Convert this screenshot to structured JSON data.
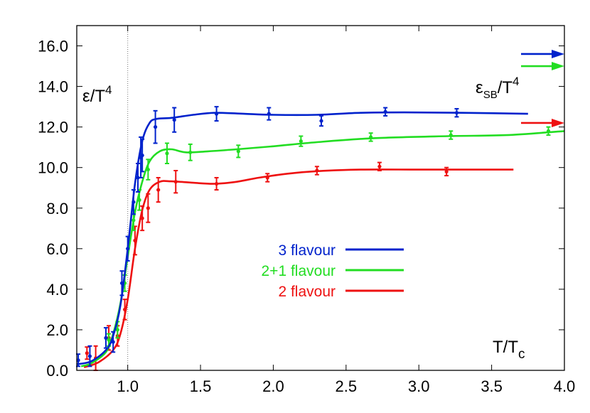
{
  "chart_data": {
    "type": "line",
    "title": "",
    "ylabel_main": "ε/T",
    "ylabel_sup": "4",
    "sb_label_main": "ε",
    "sb_label_sub": "SB",
    "sb_label_rest": "/T",
    "sb_label_sup": "4",
    "xlabel_main": "T/T",
    "xlabel_sub": "c",
    "xlim": [
      0.65,
      4.0
    ],
    "ylim": [
      0.0,
      17.0
    ],
    "x_ticks": [
      "1.0",
      "1.5",
      "2.0",
      "2.5",
      "3.0",
      "3.5",
      "4.0"
    ],
    "x_tick_values": [
      1.0,
      1.5,
      2.0,
      2.5,
      3.0,
      3.5,
      4.0
    ],
    "y_ticks": [
      "0.0",
      "2.0",
      "4.0",
      "6.0",
      "8.0",
      "10.0",
      "12.0",
      "14.0",
      "16.0"
    ],
    "y_tick_values": [
      0,
      2,
      4,
      6,
      8,
      10,
      12,
      14,
      16
    ],
    "tc_line_x": 1.0,
    "legend_position": "center",
    "series": [
      {
        "name": "3 flavour",
        "color": "#0022cc",
        "sb_limit": 15.6,
        "curve": [
          [
            0.65,
            0.3
          ],
          [
            0.75,
            0.45
          ],
          [
            0.85,
            1.0
          ],
          [
            0.9,
            1.7
          ],
          [
            0.95,
            3.2
          ],
          [
            1.0,
            6.0
          ],
          [
            1.05,
            9.2
          ],
          [
            1.1,
            11.3
          ],
          [
            1.15,
            12.2
          ],
          [
            1.2,
            12.4
          ],
          [
            1.3,
            12.45
          ],
          [
            1.45,
            12.6
          ],
          [
            1.6,
            12.7
          ],
          [
            1.8,
            12.65
          ],
          [
            2.0,
            12.6
          ],
          [
            2.3,
            12.6
          ],
          [
            2.6,
            12.7
          ],
          [
            2.9,
            12.72
          ],
          [
            3.3,
            12.7
          ],
          [
            3.75,
            12.65
          ]
        ],
        "points": [
          {
            "x": 0.66,
            "y": 0.5,
            "err": 0.3
          },
          {
            "x": 0.74,
            "y": 0.7,
            "err": 0.5
          },
          {
            "x": 0.85,
            "y": 1.6,
            "err": 0.5
          },
          {
            "x": 0.9,
            "y": 1.4,
            "err": 0.5
          },
          {
            "x": 0.96,
            "y": 4.3,
            "err": 0.6
          },
          {
            "x": 1.0,
            "y": 6.0,
            "err": 0.6
          },
          {
            "x": 1.04,
            "y": 8.3,
            "err": 0.6
          },
          {
            "x": 1.07,
            "y": 9.5,
            "err": 0.7
          },
          {
            "x": 1.09,
            "y": 10.5,
            "err": 1.0
          },
          {
            "x": 1.1,
            "y": 10.6,
            "err": 0.8
          },
          {
            "x": 1.19,
            "y": 12.0,
            "err": 0.8
          },
          {
            "x": 1.32,
            "y": 12.35,
            "err": 0.6
          },
          {
            "x": 1.61,
            "y": 12.65,
            "err": 0.35
          },
          {
            "x": 1.97,
            "y": 12.65,
            "err": 0.3
          },
          {
            "x": 2.33,
            "y": 12.3,
            "err": 0.25
          },
          {
            "x": 2.77,
            "y": 12.75,
            "err": 0.2
          },
          {
            "x": 3.26,
            "y": 12.7,
            "err": 0.2
          }
        ]
      },
      {
        "name": "2+1 flavour",
        "color": "#22dd22",
        "sb_limit": 15.0,
        "curve": [
          [
            0.68,
            0.2
          ],
          [
            0.75,
            0.35
          ],
          [
            0.85,
            0.9
          ],
          [
            0.9,
            1.8
          ],
          [
            0.95,
            3.3
          ],
          [
            1.0,
            5.6
          ],
          [
            1.05,
            7.8
          ],
          [
            1.1,
            9.3
          ],
          [
            1.15,
            10.3
          ],
          [
            1.22,
            10.8
          ],
          [
            1.3,
            10.9
          ],
          [
            1.4,
            10.75
          ],
          [
            1.55,
            10.8
          ],
          [
            1.75,
            10.9
          ],
          [
            2.0,
            11.05
          ],
          [
            2.3,
            11.25
          ],
          [
            2.7,
            11.45
          ],
          [
            3.2,
            11.55
          ],
          [
            3.6,
            11.6
          ],
          [
            4.0,
            11.8
          ]
        ],
        "points": [
          {
            "x": 0.87,
            "y": 1.5,
            "err": 0.3
          },
          {
            "x": 0.93,
            "y": 2.0,
            "err": 0.4
          },
          {
            "x": 0.98,
            "y": 4.3,
            "err": 0.4
          },
          {
            "x": 1.04,
            "y": 7.4,
            "err": 0.5
          },
          {
            "x": 1.08,
            "y": 8.4,
            "err": 0.5
          },
          {
            "x": 1.14,
            "y": 9.9,
            "err": 0.5
          },
          {
            "x": 1.27,
            "y": 10.7,
            "err": 0.5
          },
          {
            "x": 1.43,
            "y": 10.75,
            "err": 0.4
          },
          {
            "x": 1.76,
            "y": 10.8,
            "err": 0.3
          },
          {
            "x": 2.19,
            "y": 11.3,
            "err": 0.25
          },
          {
            "x": 2.67,
            "y": 11.5,
            "err": 0.2
          },
          {
            "x": 3.22,
            "y": 11.6,
            "err": 0.2
          },
          {
            "x": 3.89,
            "y": 11.8,
            "err": 0.2
          }
        ]
      },
      {
        "name": "2 flavour",
        "color": "#ee1111",
        "sb_limit": 12.2,
        "curve": [
          [
            0.7,
            0.15
          ],
          [
            0.8,
            0.4
          ],
          [
            0.9,
            1.0
          ],
          [
            0.95,
            1.8
          ],
          [
            1.0,
            3.5
          ],
          [
            1.05,
            6.0
          ],
          [
            1.1,
            7.9
          ],
          [
            1.15,
            8.9
          ],
          [
            1.22,
            9.3
          ],
          [
            1.3,
            9.32
          ],
          [
            1.45,
            9.25
          ],
          [
            1.6,
            9.2
          ],
          [
            1.75,
            9.3
          ],
          [
            1.9,
            9.5
          ],
          [
            2.1,
            9.7
          ],
          [
            2.3,
            9.82
          ],
          [
            2.6,
            9.9
          ],
          [
            3.0,
            9.9
          ],
          [
            3.4,
            9.9
          ],
          [
            3.65,
            9.9
          ]
        ],
        "points": [
          {
            "x": 0.72,
            "y": 0.85,
            "err": 0.3
          },
          {
            "x": 0.78,
            "y": 0.6,
            "err": 0.6
          },
          {
            "x": 0.87,
            "y": 1.6,
            "err": 0.6
          },
          {
            "x": 0.93,
            "y": 1.7,
            "err": 0.5
          },
          {
            "x": 0.98,
            "y": 3.0,
            "err": 0.5
          },
          {
            "x": 1.05,
            "y": 6.4,
            "err": 0.7
          },
          {
            "x": 1.1,
            "y": 7.5,
            "err": 0.6
          },
          {
            "x": 1.14,
            "y": 8.0,
            "err": 0.7
          },
          {
            "x": 1.21,
            "y": 8.9,
            "err": 0.6
          },
          {
            "x": 1.33,
            "y": 9.3,
            "err": 0.55
          },
          {
            "x": 1.61,
            "y": 9.2,
            "err": 0.3
          },
          {
            "x": 1.96,
            "y": 9.5,
            "err": 0.2
          },
          {
            "x": 2.3,
            "y": 9.85,
            "err": 0.2
          },
          {
            "x": 2.73,
            "y": 10.05,
            "err": 0.2
          },
          {
            "x": 3.19,
            "y": 9.8,
            "err": 0.2
          }
        ]
      }
    ]
  }
}
